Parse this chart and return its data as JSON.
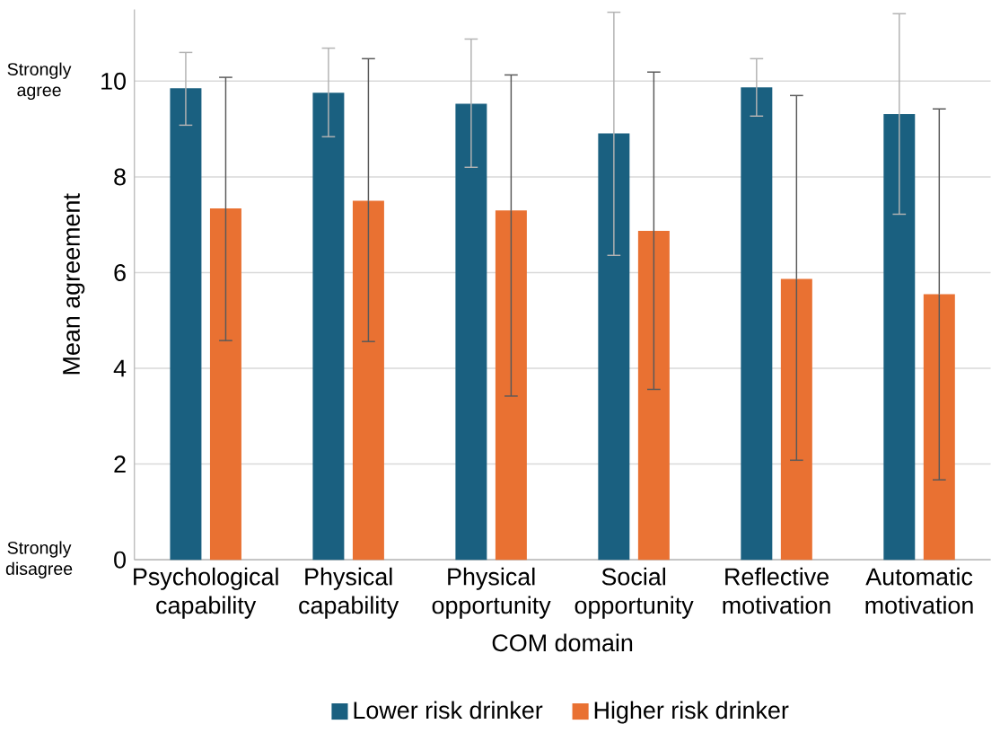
{
  "chart_data": {
    "type": "bar",
    "xlabel": "COM domain",
    "ylabel": "Mean agreement",
    "categories": [
      "Psychological capability",
      "Physical capability",
      "Physical opportunity",
      "Social opportunity",
      "Reflective motivation",
      "Automatic motivation"
    ],
    "series": [
      {
        "name": "Lower risk drinker",
        "color": "#1a6080",
        "values": [
          9.85,
          9.76,
          9.53,
          8.91,
          9.87,
          9.31
        ],
        "errors": [
          [
            9.08,
            10.6
          ],
          [
            8.84,
            10.69
          ],
          [
            8.2,
            10.88
          ],
          [
            6.36,
            11.44
          ],
          [
            9.27,
            10.47
          ],
          [
            7.22,
            11.41
          ]
        ]
      },
      {
        "name": "Higher risk drinker",
        "color": "#e97132",
        "values": [
          7.34,
          7.5,
          7.3,
          6.87,
          5.87,
          5.55
        ],
        "errors": [
          [
            4.58,
            10.08
          ],
          [
            4.56,
            10.47
          ],
          [
            3.42,
            10.13
          ],
          [
            3.56,
            10.19
          ],
          [
            2.08,
            9.7
          ],
          [
            1.67,
            9.42
          ]
        ]
      }
    ],
    "ylim": [
      0,
      11.5
    ],
    "yticks": [
      0,
      2,
      4,
      6,
      8,
      10
    ],
    "grid": "y",
    "legend": "bottom",
    "annotations": [
      "Strongly agree",
      "Strongly disagree"
    ]
  }
}
